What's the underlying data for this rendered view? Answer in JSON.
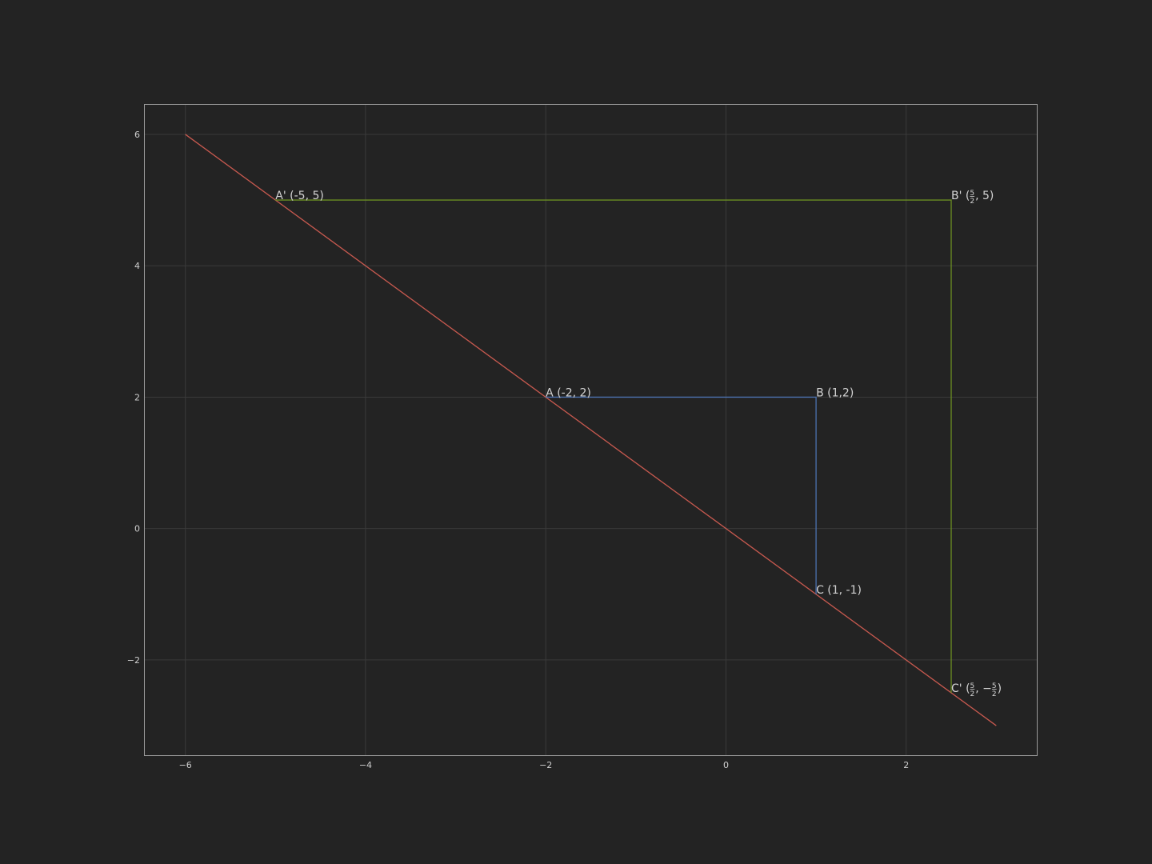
{
  "chart_data": {
    "type": "line",
    "xlim": [
      -6.45,
      3.45
    ],
    "ylim": [
      -3.45,
      6.45
    ],
    "x_ticks": [
      -6,
      -4,
      -2,
      0,
      2
    ],
    "x_tick_labels": [
      "−6",
      "−4",
      "−2",
      "0",
      "2"
    ],
    "y_ticks": [
      -2,
      0,
      2,
      4,
      6
    ],
    "y_tick_labels": [
      "−2",
      "0",
      "2",
      "4",
      "6"
    ],
    "grid": true,
    "series": [
      {
        "key": "line",
        "color": "#c8594f",
        "points": [
          [
            -6,
            6
          ],
          [
            3,
            -3
          ]
        ]
      },
      {
        "key": "original",
        "color": "#4c72b0",
        "points": [
          [
            -2,
            2
          ],
          [
            1,
            2
          ],
          [
            1,
            -1
          ]
        ]
      },
      {
        "key": "image",
        "color": "#6b8e23",
        "points": [
          [
            -5,
            5
          ],
          [
            2.5,
            5
          ],
          [
            2.5,
            -2.5
          ]
        ]
      }
    ],
    "annotations": [
      {
        "key": "A",
        "x": -2,
        "y": 2,
        "text": "A (-2, 2)"
      },
      {
        "key": "B",
        "x": 1,
        "y": 2,
        "text": "B (1,2)"
      },
      {
        "key": "C",
        "x": 1,
        "y": -1,
        "text": "C (1, -1)"
      },
      {
        "key": "A_prime",
        "x": -5,
        "y": 5,
        "text": "A' (-5, 5)"
      },
      {
        "key": "B_prime",
        "x": 2.5,
        "y": 5,
        "prefix": "B' (",
        "num": "5",
        "den": "2",
        "suffix": ", 5)"
      },
      {
        "key": "C_prime",
        "x": 2.5,
        "y": -2.5,
        "prefix": "C' (",
        "num": "5",
        "den": "2",
        "mid": ", −",
        "num2": "5",
        "den2": "2",
        "suffix": ")"
      }
    ]
  },
  "colors": {
    "background": "#232323",
    "axes_frame": "#9a9a9a",
    "grid": "#3a3a3a"
  }
}
